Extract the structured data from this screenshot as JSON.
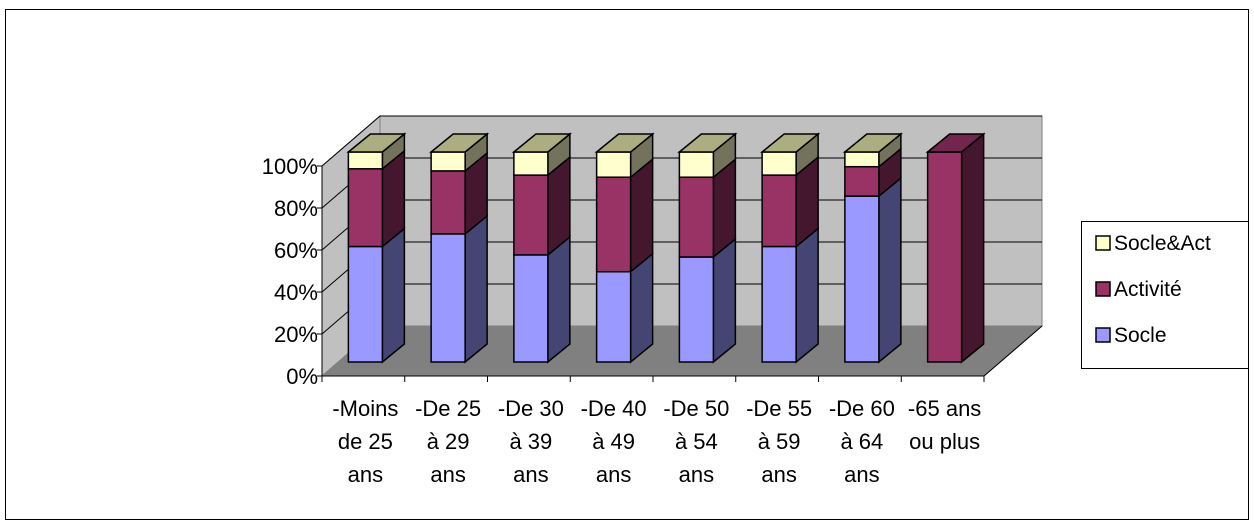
{
  "chart_data": {
    "type": "bar",
    "stacked": true,
    "percent_stacked": true,
    "three_d": true,
    "title": "",
    "xlabel": "",
    "ylabel": "",
    "ylim": [
      0,
      100
    ],
    "yticks": [
      "0%",
      "20%",
      "40%",
      "60%",
      "80%",
      "100%"
    ],
    "grid": true,
    "legend_position": "right",
    "categories": [
      [
        "-Moins",
        "de 25",
        "ans"
      ],
      [
        "-De 25",
        "à 29",
        "ans"
      ],
      [
        "-De 30",
        "à 39",
        "ans"
      ],
      [
        "-De 40",
        "à 49",
        "ans"
      ],
      [
        "-De 50",
        "à 54",
        "ans"
      ],
      [
        "-De 55",
        "à 59",
        "ans"
      ],
      [
        "-De 60",
        "à 64",
        "ans"
      ],
      [
        "-65 ans",
        "ou plus"
      ]
    ],
    "series": [
      {
        "name": "Socle",
        "color": "#9999ff",
        "values": [
          55,
          61,
          51,
          43,
          50,
          55,
          79,
          0
        ]
      },
      {
        "name": "Activité",
        "color": "#993366",
        "values": [
          37,
          30,
          38,
          45,
          38,
          34,
          14,
          100
        ]
      },
      {
        "name": "Socle&Act",
        "color": "#ffffcc",
        "values": [
          8,
          9,
          11,
          12,
          12,
          11,
          7,
          0
        ]
      }
    ],
    "legend_order": [
      "Socle&Act",
      "Activité",
      "Socle"
    ]
  }
}
